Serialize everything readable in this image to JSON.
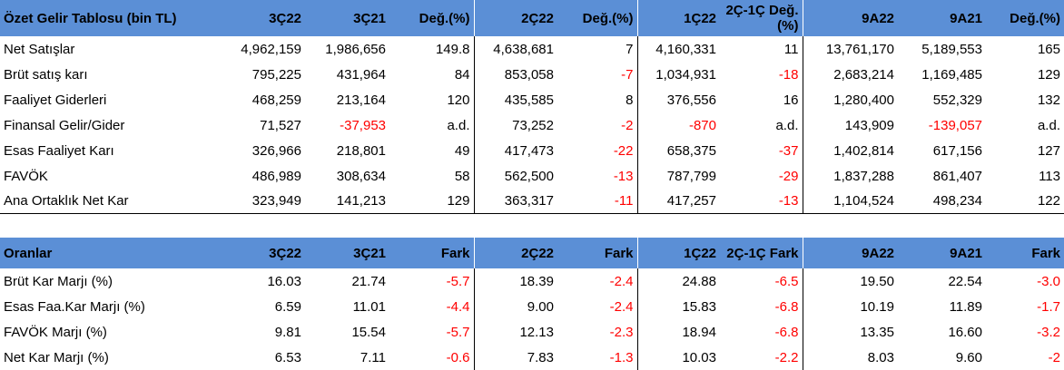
{
  "income_table": {
    "headers": [
      "Özet Gelir Tablosu (bin TL)",
      "3Ç22",
      "3Ç21",
      "Değ.(%)",
      "2Ç22",
      "Değ.(%)",
      "1Ç22",
      "2Ç-1Ç Değ.(%)",
      "9A22",
      "9A21",
      "Değ.(%)"
    ],
    "rows": [
      {
        "label": "Net Satışlar",
        "c": [
          "4,962,159",
          "1,986,656",
          "149.8",
          "4,638,681",
          "7",
          "4,160,331",
          "11",
          "13,761,170",
          "5,189,553",
          "165"
        ]
      },
      {
        "label": "Brüt satış karı",
        "c": [
          "795,225",
          "431,964",
          "84",
          "853,058",
          "-7",
          "1,034,931",
          "-18",
          "2,683,214",
          "1,169,485",
          "129"
        ]
      },
      {
        "label": "Faaliyet Giderleri",
        "c": [
          "468,259",
          "213,164",
          "120",
          "435,585",
          "8",
          "376,556",
          "16",
          "1,280,400",
          "552,329",
          "132"
        ]
      },
      {
        "label": "Finansal Gelir/Gider",
        "c": [
          "71,527",
          "-37,953",
          "a.d.",
          "73,252",
          "-2",
          "-870",
          "a.d.",
          "143,909",
          "-139,057",
          "a.d."
        ]
      },
      {
        "label": "Esas Faaliyet Karı",
        "c": [
          "326,966",
          "218,801",
          "49",
          "417,473",
          "-22",
          "658,375",
          "-37",
          "1,402,814",
          "617,156",
          "127"
        ]
      },
      {
        "label": "FAVÖK",
        "c": [
          "486,989",
          "308,634",
          "58",
          "562,500",
          "-13",
          "787,799",
          "-29",
          "1,837,288",
          "861,407",
          "113"
        ]
      },
      {
        "label": "Ana Ortaklık Net Kar",
        "c": [
          "323,949",
          "141,213",
          "129",
          "363,317",
          "-11",
          "417,257",
          "-13",
          "1,104,524",
          "498,234",
          "122"
        ]
      }
    ]
  },
  "ratio_table": {
    "headers": [
      "Oranlar",
      "3Ç22",
      "3Ç21",
      "Fark",
      "2Ç22",
      "Fark",
      "1Ç22",
      "2Ç-1Ç Fark",
      "9A22",
      "9A21",
      "Fark"
    ],
    "rows": [
      {
        "label": "Brüt Kar Marjı (%)",
        "c": [
          "16.03",
          "21.74",
          "-5.7",
          "18.39",
          "-2.4",
          "24.88",
          "-6.5",
          "19.50",
          "22.54",
          "-3.0"
        ]
      },
      {
        "label": "Esas Faa.Kar Marjı (%)",
        "c": [
          "6.59",
          "11.01",
          "-4.4",
          "9.00",
          "-2.4",
          "15.83",
          "-6.8",
          "10.19",
          "11.89",
          "-1.7"
        ]
      },
      {
        "label": "FAVÖK Marjı (%)",
        "c": [
          "9.81",
          "15.54",
          "-5.7",
          "12.13",
          "-2.3",
          "18.94",
          "-6.8",
          "13.35",
          "16.60",
          "-3.2"
        ]
      },
      {
        "label": "Net Kar Marjı (%)",
        "c": [
          "6.53",
          "7.11",
          "-0.6",
          "7.83",
          "-1.3",
          "10.03",
          "-2.2",
          "8.03",
          "9.60",
          "-2"
        ]
      }
    ]
  },
  "colors": {
    "header_bg": "#5b8fd6",
    "negative": "#ff0000"
  }
}
